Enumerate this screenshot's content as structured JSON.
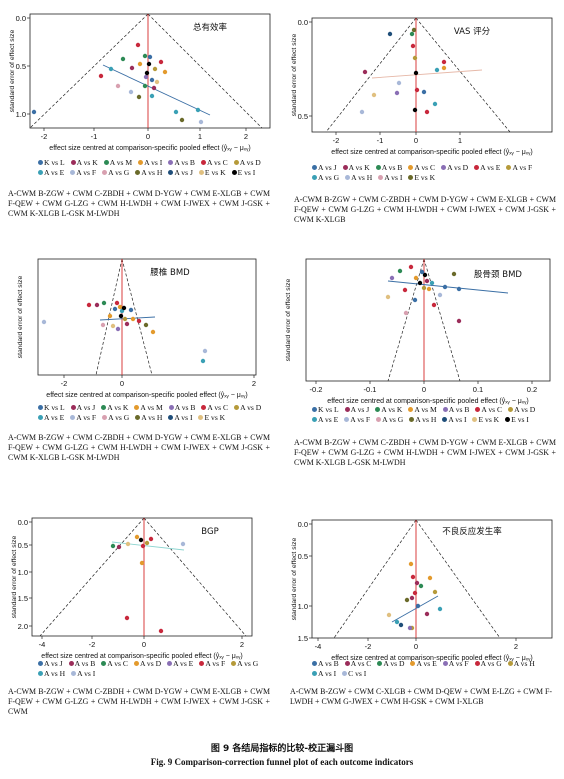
{
  "panels": [
    {
      "id": "p1",
      "title": "总有效率",
      "ylabel": "standard error of effect size",
      "xlabel": "effect size centred at comparison-specific pooled effect (ŷₓᵧ − μₓᵧ)",
      "xticks": [
        "-2",
        "-1",
        "0",
        "1",
        "2"
      ],
      "yticks": [
        "0.0",
        "0.5",
        "1.0"
      ],
      "legend": [
        "K vs L",
        "A vs K",
        "A vs M",
        "A vs I",
        "A vs B",
        "A vs C",
        "A vs D",
        "A vs E",
        "A vs F",
        "A vs G",
        "A vs H",
        "A vs J",
        "E vs K",
        "E vs I"
      ],
      "abbreviations": "A-CWM   B-ZGW + CWM   C-ZBDH + CWM   D-YGW + CWM   E-XLGB + CWM   F-QEW + CWM   G-LZG + CWM   H-LWDH + CWM   I-JWEX + CWM   J-GSK + CWM   K-XLGB   L-GSK   M-LWDH"
    },
    {
      "id": "p2",
      "title": "VAS 评分",
      "ylabel": "standard error of effect size",
      "xlabel": "effect size centred at comparison-specific pooled effect (ŷₓᵧ − μₓᵧ)",
      "xticks": [
        "-2",
        "-1",
        "0",
        "1"
      ],
      "yticks": [
        "0.0",
        "0.5"
      ],
      "legend": [
        "A vs J",
        "A vs K",
        "A vs B",
        "A vs C",
        "A vs D",
        "A vs E",
        "A vs F",
        "A vs G",
        "A vs H",
        "A vs I",
        "E vs K"
      ],
      "abbreviations": "A-CWM   B-ZGW + CWM   C-ZBDH + CWM   D-YGW + CWM   E-XLGB + CWM   F-QEW + CWM   G-LZG + CWM   H-LWDH + CWM   I-JWEX + CWM   J-GSK + CWM   K-XLGB"
    },
    {
      "id": "p3",
      "title": "腰椎 BMD",
      "ylabel": "standard error of effect size",
      "xlabel": "effect size centred at comparison-specific pooled effect (ŷₓᵧ − μₓᵧ)",
      "xticks": [
        "-2",
        "0",
        "2"
      ],
      "yticks": [],
      "legend": [
        "K vs L",
        "A vs J",
        "A vs K",
        "A vs M",
        "A vs B",
        "A vs C",
        "A vs D",
        "A vs E",
        "A vs F",
        "A vs G",
        "A vs H",
        "A vs I",
        "E vs K"
      ],
      "abbreviations": "A-CWM   B-ZGW + CWM   C-ZBDH + CWM   D-YGW + CWM   E-XLGB + CWM   F-QEW + CWM   G-LZG + CWM   H-LWDH + CWM   I-JWEX + CWM   J-GSK + CWM   K-XLGB   L-GSK   M-LWDH"
    },
    {
      "id": "p4",
      "title": "股骨颈 BMD",
      "ylabel": "standard error of effect size",
      "xlabel": "effect size centred at comparison-specific pooled effect (ŷₓᵧ − μₓᵧ)",
      "xticks": [
        "-0.2",
        "-0.1",
        "0",
        "0.1",
        "0.2"
      ],
      "yticks": [],
      "legend": [
        "K vs L",
        "A vs J",
        "A vs K",
        "A vs M",
        "A vs B",
        "A vs C",
        "A vs D",
        "A vs E",
        "A vs F",
        "A vs G",
        "A vs H",
        "A vs I",
        "E vs K",
        "E vs I"
      ],
      "abbreviations": "A-CWM   B-ZGW + CWM   C-ZBDH + CWM   D-YGW + CWM   E-XLGB + CWM   F-QEW + CWM   G-LZG + CWM   H-LWDH + CWM   I-JWEX + CWM   J-GSK + CWM   K-XLGB   L-GSK   M-LWDH"
    },
    {
      "id": "p5",
      "title": "BGP",
      "ylabel": "standard error of effect size",
      "xlabel": "effect size centred at comparison-specific pooled effect (ŷₓᵧ − μₓᵧ)",
      "xticks": [
        "-4",
        "-2",
        "0",
        "2"
      ],
      "yticks": [
        "0.0",
        "0.5",
        "1.0",
        "1.5",
        "2.0"
      ],
      "legend": [
        "A vs J",
        "A vs B",
        "A vs C",
        "A vs D",
        "A vs E",
        "A vs F",
        "A vs G",
        "A vs H",
        "A vs I"
      ],
      "abbreviations": "A-CWM   B-ZGW + CWM   C-ZBDH + CWM   D-YGW + CWM   E-XLGB + CWM   F-QEW + CWM   G-LZG + CWM   H-LWDH + CWM   I-JWEX + CWM   J-GSK + CWM"
    },
    {
      "id": "p6",
      "title": "不良反应发生率",
      "ylabel": "standard error of effect size",
      "xlabel": "effect size centred at comparison-specific pooled effect (ŷₓᵧ − μₓᵧ)",
      "xticks": [
        "-4",
        "-2",
        "0",
        "2"
      ],
      "yticks": [
        "0.0",
        "0.5",
        "1.0",
        "1.5"
      ],
      "legend": [
        "A vs B",
        "A vs C",
        "A vs D",
        "A vs E",
        "A vs F",
        "A vs G",
        "A vs H",
        "A vs I",
        "C vs I"
      ],
      "abbreviations": "A-CWM   B-ZGW + CWM   C-XLGB + CWM   D-QEW + CWM   E-LZG + CWM   F-LWDH + CWM   G-JWEX + CWM   H-GSK + CWM   I-XLGB"
    }
  ],
  "caption_cn": "图 9   各结局指标的比较-校正漏斗图",
  "caption_en": "Fig. 9   Comparison-correction funnel plot of each outcome indicators",
  "colors": [
    "#3b6fa5",
    "#9b2d5a",
    "#2d8a55",
    "#e39a2d",
    "#8a6fb5",
    "#c8283c",
    "#b59a3a",
    "#3aa0b5",
    "#a8b8d8",
    "#d8a0b0",
    "#6a6a2a",
    "#1f4e79",
    "#e0c080",
    "#000000"
  ]
}
